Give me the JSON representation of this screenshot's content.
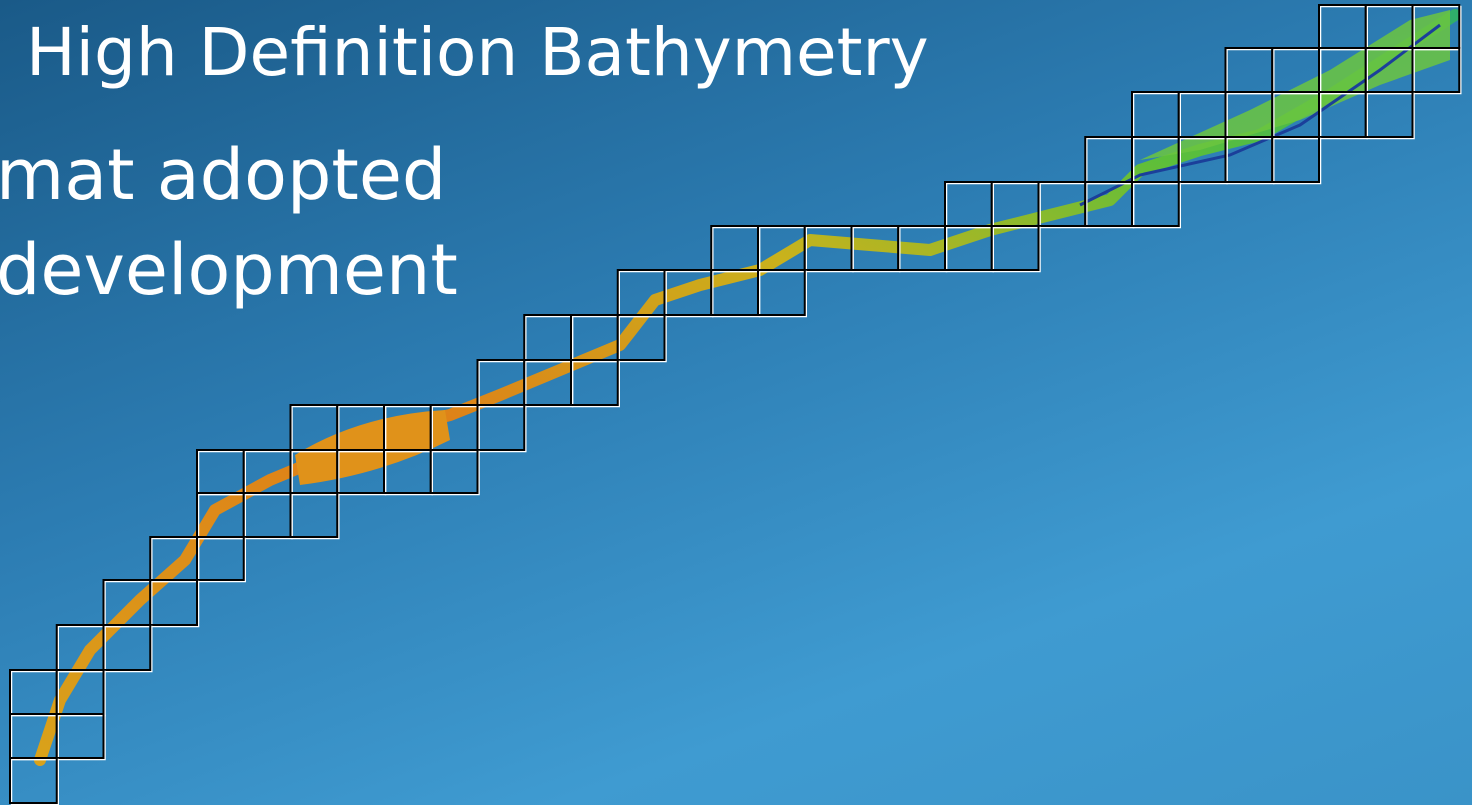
{
  "slide": {
    "title": "High Definition Bathymetry",
    "lines": [
      "mat adopted",
      "development"
    ]
  }
}
